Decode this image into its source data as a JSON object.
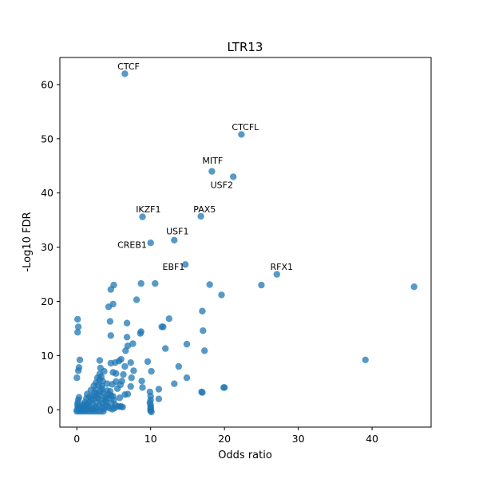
{
  "chart_data": {
    "type": "scatter",
    "title": "LTR13",
    "xlabel": "Odds ratio",
    "ylabel": "-Log10 FDR",
    "xlim": [
      -2.3,
      48.0
    ],
    "ylim": [
      -3.2,
      65.0
    ],
    "xticks": [
      0,
      10,
      20,
      30,
      40
    ],
    "yticks": [
      0,
      10,
      20,
      30,
      40,
      50,
      60
    ],
    "grid": false,
    "marker_color": "#1f77b4",
    "marker_alpha": 0.75,
    "annotations": [
      {
        "label": "CTCF",
        "x": 6.5,
        "y": 62.0,
        "text_x": 5.5,
        "text_y": 62.8
      },
      {
        "label": "CTCFL",
        "x": 22.3,
        "y": 50.8,
        "text_x": 21.0,
        "text_y": 51.6
      },
      {
        "label": "MITF",
        "x": 18.3,
        "y": 44.0,
        "text_x": 17.0,
        "text_y": 45.4
      },
      {
        "label": "USF2",
        "x": 21.2,
        "y": 43.0,
        "text_x": 18.1,
        "text_y": 40.9
      },
      {
        "label": "IKZF1",
        "x": 8.9,
        "y": 35.6,
        "text_x": 8.0,
        "text_y": 36.4
      },
      {
        "label": "PAX5",
        "x": 16.8,
        "y": 35.7,
        "text_x": 15.8,
        "text_y": 36.4
      },
      {
        "label": "USF1",
        "x": 13.2,
        "y": 31.3,
        "text_x": 12.1,
        "text_y": 32.4
      },
      {
        "label": "CREB1",
        "x": 10.0,
        "y": 30.8,
        "text_x": 5.5,
        "text_y": 29.9
      },
      {
        "label": "EBF1",
        "x": 14.7,
        "y": 26.8,
        "text_x": 11.6,
        "text_y": 25.8
      },
      {
        "label": "RFX1",
        "x": 27.1,
        "y": 25.0,
        "text_x": 26.2,
        "text_y": 25.8
      }
    ],
    "points": [
      [
        6.5,
        62.0
      ],
      [
        22.3,
        50.8
      ],
      [
        18.3,
        44.0
      ],
      [
        21.2,
        43.0
      ],
      [
        8.9,
        35.6
      ],
      [
        16.8,
        35.7
      ],
      [
        13.2,
        31.3
      ],
      [
        10.0,
        30.8
      ],
      [
        14.7,
        26.8
      ],
      [
        27.1,
        25.0
      ],
      [
        45.7,
        22.7
      ],
      [
        25.0,
        23.0
      ],
      [
        39.1,
        9.2
      ],
      [
        5.0,
        23.0
      ],
      [
        4.6,
        22.2
      ],
      [
        8.7,
        23.3
      ],
      [
        10.6,
        23.3
      ],
      [
        18.0,
        23.1
      ],
      [
        19.6,
        21.2
      ],
      [
        8.1,
        20.3
      ],
      [
        4.9,
        19.5
      ],
      [
        4.3,
        19.0
      ],
      [
        17.0,
        18.2
      ],
      [
        12.5,
        16.8
      ],
      [
        6.8,
        16.0
      ],
      [
        4.5,
        16.3
      ],
      [
        11.7,
        15.3
      ],
      [
        11.5,
        15.3
      ],
      [
        17.1,
        14.6
      ],
      [
        8.7,
        14.4
      ],
      [
        8.6,
        14.1
      ],
      [
        4.6,
        13.7
      ],
      [
        6.8,
        13.4
      ],
      [
        12.0,
        11.3
      ],
      [
        14.9,
        12.1
      ],
      [
        7.6,
        12.2
      ],
      [
        6.9,
        11.8
      ],
      [
        6.6,
        10.9
      ],
      [
        17.3,
        10.9
      ],
      [
        9.6,
        8.9
      ],
      [
        10.1,
        7.1
      ],
      [
        13.8,
        8.0
      ],
      [
        14.9,
        5.9
      ],
      [
        13.2,
        4.8
      ],
      [
        11.1,
        3.8
      ],
      [
        11.1,
        2.0
      ],
      [
        8.9,
        4.1
      ],
      [
        8.8,
        5.3
      ],
      [
        6.0,
        9.3
      ],
      [
        5.7,
        9.0
      ],
      [
        5.2,
        8.7
      ],
      [
        4.6,
        8.6
      ],
      [
        7.3,
        8.7
      ],
      [
        6.5,
        8.0
      ],
      [
        6.3,
        6.5
      ],
      [
        7.7,
        7.2
      ],
      [
        5.3,
        6.7
      ],
      [
        3.7,
        7.1
      ],
      [
        3.2,
        7.7
      ],
      [
        3.1,
        9.1
      ],
      [
        3.1,
        6.6
      ],
      [
        4.9,
        6.9
      ],
      [
        7.4,
        5.9
      ],
      [
        6.1,
        5.3
      ],
      [
        5.3,
        5.2
      ],
      [
        4.8,
        4.7
      ],
      [
        3.5,
        5.3
      ],
      [
        4.1,
        4.8
      ],
      [
        3.4,
        4.4
      ],
      [
        5.9,
        4.6
      ],
      [
        7.3,
        4.3
      ],
      [
        6.9,
        2.9
      ],
      [
        6.5,
        2.8
      ],
      [
        5.8,
        2.2
      ],
      [
        5.5,
        3.9
      ],
      [
        4.9,
        2.5
      ],
      [
        17.0,
        3.2
      ],
      [
        16.9,
        3.3
      ],
      [
        20.0,
        4.1
      ],
      [
        19.9,
        4.1
      ],
      [
        0.1,
        16.7
      ],
      [
        0.2,
        15.3
      ],
      [
        0.1,
        14.3
      ],
      [
        0.4,
        9.2
      ],
      [
        0.3,
        7.8
      ],
      [
        0.2,
        7.2
      ],
      [
        0.0,
        5.9
      ],
      [
        0.3,
        2.3
      ],
      [
        0.2,
        1.8
      ],
      [
        0.1,
        1.2
      ],
      [
        0.1,
        0.8
      ],
      [
        0.2,
        0.5
      ],
      [
        0.3,
        0.2
      ],
      [
        0.0,
        0.0
      ],
      [
        0.5,
        0.0
      ],
      [
        1.0,
        0.0
      ],
      [
        1.5,
        0.1
      ],
      [
        2.0,
        0.2
      ],
      [
        2.5,
        0.5
      ],
      [
        3.0,
        0.8
      ],
      [
        0.0,
        -0.3
      ],
      [
        0.4,
        -0.3
      ],
      [
        0.8,
        -0.3
      ],
      [
        1.2,
        -0.3
      ],
      [
        1.6,
        -0.3
      ],
      [
        2.0,
        -0.3
      ],
      [
        2.4,
        -0.3
      ],
      [
        2.8,
        -0.3
      ],
      [
        3.2,
        -0.3
      ],
      [
        3.6,
        -0.3
      ],
      [
        1.0,
        0.5
      ],
      [
        1.3,
        0.8
      ],
      [
        1.5,
        1.1
      ],
      [
        1.8,
        1.5
      ],
      [
        2.0,
        2.0
      ],
      [
        2.2,
        2.6
      ],
      [
        2.4,
        3.2
      ],
      [
        2.6,
        3.8
      ],
      [
        2.3,
        4.4
      ],
      [
        2.6,
        5.0
      ],
      [
        1.9,
        3.6
      ],
      [
        2.1,
        1.2
      ],
      [
        2.7,
        1.4
      ],
      [
        2.9,
        2.1
      ],
      [
        3.0,
        2.8
      ],
      [
        3.2,
        3.4
      ],
      [
        3.4,
        3.9
      ],
      [
        3.6,
        3.1
      ],
      [
        3.8,
        2.4
      ],
      [
        3.3,
        1.8
      ],
      [
        3.5,
        1.2
      ],
      [
        3.9,
        0.9
      ],
      [
        4.2,
        0.6
      ],
      [
        4.0,
        1.5
      ],
      [
        4.2,
        2.1
      ],
      [
        4.4,
        2.8
      ],
      [
        4.5,
        3.4
      ],
      [
        4.7,
        1.3
      ],
      [
        5.0,
        1.8
      ],
      [
        5.2,
        0.9
      ],
      [
        5.5,
        0.6
      ],
      [
        5.8,
        0.6
      ],
      [
        6.0,
        0.6
      ],
      [
        6.2,
        0.5
      ],
      [
        2.9,
        4.6
      ],
      [
        3.1,
        5.6
      ],
      [
        3.3,
        6.1
      ],
      [
        2.8,
        5.9
      ],
      [
        1.7,
        2.4
      ],
      [
        1.6,
        0.4
      ],
      [
        0.7,
        0.6
      ],
      [
        0.9,
        1.0
      ],
      [
        1.1,
        1.4
      ],
      [
        1.3,
        2.1
      ],
      [
        1.4,
        2.9
      ],
      [
        2.5,
        2.2
      ],
      [
        2.7,
        2.8
      ],
      [
        3.9,
        2.0
      ],
      [
        4.1,
        3.5
      ],
      [
        4.6,
        2.6
      ],
      [
        9.9,
        3.3
      ],
      [
        10.0,
        2.5
      ],
      [
        10.0,
        1.8
      ],
      [
        9.9,
        1.3
      ],
      [
        10.0,
        0.9
      ],
      [
        10.0,
        0.5
      ],
      [
        10.0,
        0.2
      ],
      [
        10.0,
        0.0
      ],
      [
        10.0,
        -0.2
      ],
      [
        10.1,
        -0.4
      ],
      [
        0.3,
        0.1
      ],
      [
        0.6,
        0.2
      ],
      [
        1.2,
        0.2
      ],
      [
        2.2,
        0.1
      ],
      [
        2.6,
        0.3
      ],
      [
        3.4,
        0.4
      ],
      [
        3.7,
        0.2
      ],
      [
        4.4,
        0.3
      ],
      [
        4.8,
        0.1
      ],
      [
        5.1,
        0.3
      ]
    ]
  }
}
